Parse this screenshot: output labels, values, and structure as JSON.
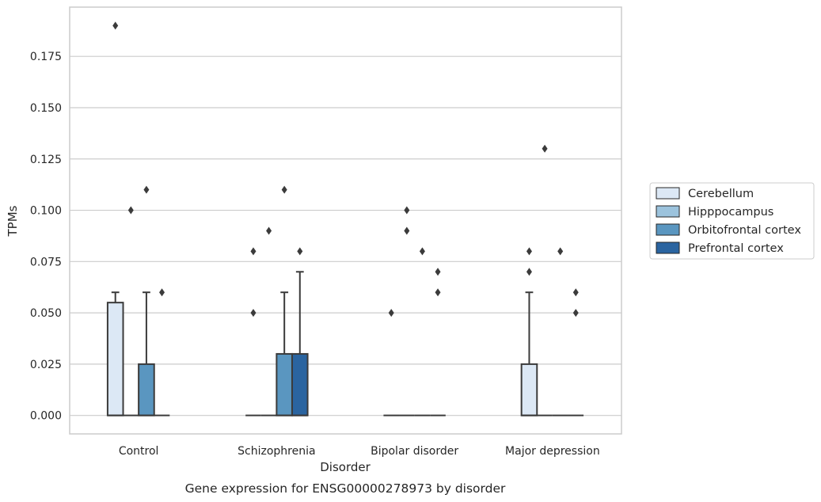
{
  "chart_data": {
    "type": "box",
    "caption": "Gene expression for ENSG00000278973 by disorder",
    "xlabel": "Disorder",
    "ylabel": "TPMs",
    "ylim": [
      -0.009,
      0.199
    ],
    "yticks": [
      0.0,
      0.025,
      0.05,
      0.075,
      0.1,
      0.125,
      0.15,
      0.175
    ],
    "ytick_labels": [
      "0.000",
      "0.025",
      "0.050",
      "0.075",
      "0.100",
      "0.125",
      "0.150",
      "0.175"
    ],
    "grid": "horizontal",
    "legend_position": "right",
    "categories": [
      "Control",
      "Schizophrenia",
      "Bipolar disorder",
      "Major depression"
    ],
    "series": [
      {
        "name": "Cerebellum",
        "color": "#dce8f5",
        "boxes": [
          {
            "q1": 0.0,
            "median": 0.0,
            "q3": 0.055,
            "whisker_low": 0.0,
            "whisker_high": 0.06,
            "outliers": [
              0.19
            ]
          },
          {
            "q1": 0.0,
            "median": 0.0,
            "q3": 0.0,
            "whisker_low": 0.0,
            "whisker_high": 0.0,
            "outliers": [
              0.05,
              0.08
            ]
          },
          {
            "q1": 0.0,
            "median": 0.0,
            "q3": 0.0,
            "whisker_low": 0.0,
            "whisker_high": 0.0,
            "outliers": [
              0.05
            ]
          },
          {
            "q1": 0.0,
            "median": 0.0,
            "q3": 0.025,
            "whisker_low": 0.0,
            "whisker_high": 0.06,
            "outliers": [
              0.07,
              0.08
            ]
          }
        ]
      },
      {
        "name": "Hipppocampus",
        "color": "#9cc3dd",
        "boxes": [
          {
            "q1": 0.0,
            "median": 0.0,
            "q3": 0.0,
            "whisker_low": 0.0,
            "whisker_high": 0.0,
            "outliers": [
              0.1
            ]
          },
          {
            "q1": 0.0,
            "median": 0.0,
            "q3": 0.0,
            "whisker_low": 0.0,
            "whisker_high": 0.0,
            "outliers": [
              0.09
            ]
          },
          {
            "q1": 0.0,
            "median": 0.0,
            "q3": 0.0,
            "whisker_low": 0.0,
            "whisker_high": 0.0,
            "outliers": [
              0.09,
              0.1
            ]
          },
          {
            "q1": 0.0,
            "median": 0.0,
            "q3": 0.0,
            "whisker_low": 0.0,
            "whisker_high": 0.0,
            "outliers": [
              0.13
            ]
          }
        ]
      },
      {
        "name": "Orbitofrontal cortex",
        "color": "#5a96c0",
        "boxes": [
          {
            "q1": 0.0,
            "median": 0.0,
            "q3": 0.025,
            "whisker_low": 0.0,
            "whisker_high": 0.06,
            "outliers": [
              0.11
            ]
          },
          {
            "q1": 0.0,
            "median": 0.0,
            "q3": 0.03,
            "whisker_low": 0.0,
            "whisker_high": 0.06,
            "outliers": [
              0.11
            ]
          },
          {
            "q1": 0.0,
            "median": 0.0,
            "q3": 0.0,
            "whisker_low": 0.0,
            "whisker_high": 0.0,
            "outliers": [
              0.08
            ]
          },
          {
            "q1": 0.0,
            "median": 0.0,
            "q3": 0.0,
            "whisker_low": 0.0,
            "whisker_high": 0.0,
            "outliers": [
              0.08
            ]
          }
        ]
      },
      {
        "name": "Prefrontal cortex",
        "color": "#2a64a0",
        "boxes": [
          {
            "q1": 0.0,
            "median": 0.0,
            "q3": 0.0,
            "whisker_low": 0.0,
            "whisker_high": 0.0,
            "outliers": [
              0.06
            ]
          },
          {
            "q1": 0.0,
            "median": 0.0,
            "q3": 0.03,
            "whisker_low": 0.0,
            "whisker_high": 0.07,
            "outliers": [
              0.08
            ]
          },
          {
            "q1": 0.0,
            "median": 0.0,
            "q3": 0.0,
            "whisker_low": 0.0,
            "whisker_high": 0.0,
            "outliers": [
              0.06,
              0.07
            ]
          },
          {
            "q1": 0.0,
            "median": 0.0,
            "q3": 0.0,
            "whisker_low": 0.0,
            "whisker_high": 0.0,
            "outliers": [
              0.05,
              0.06
            ]
          }
        ]
      }
    ]
  }
}
